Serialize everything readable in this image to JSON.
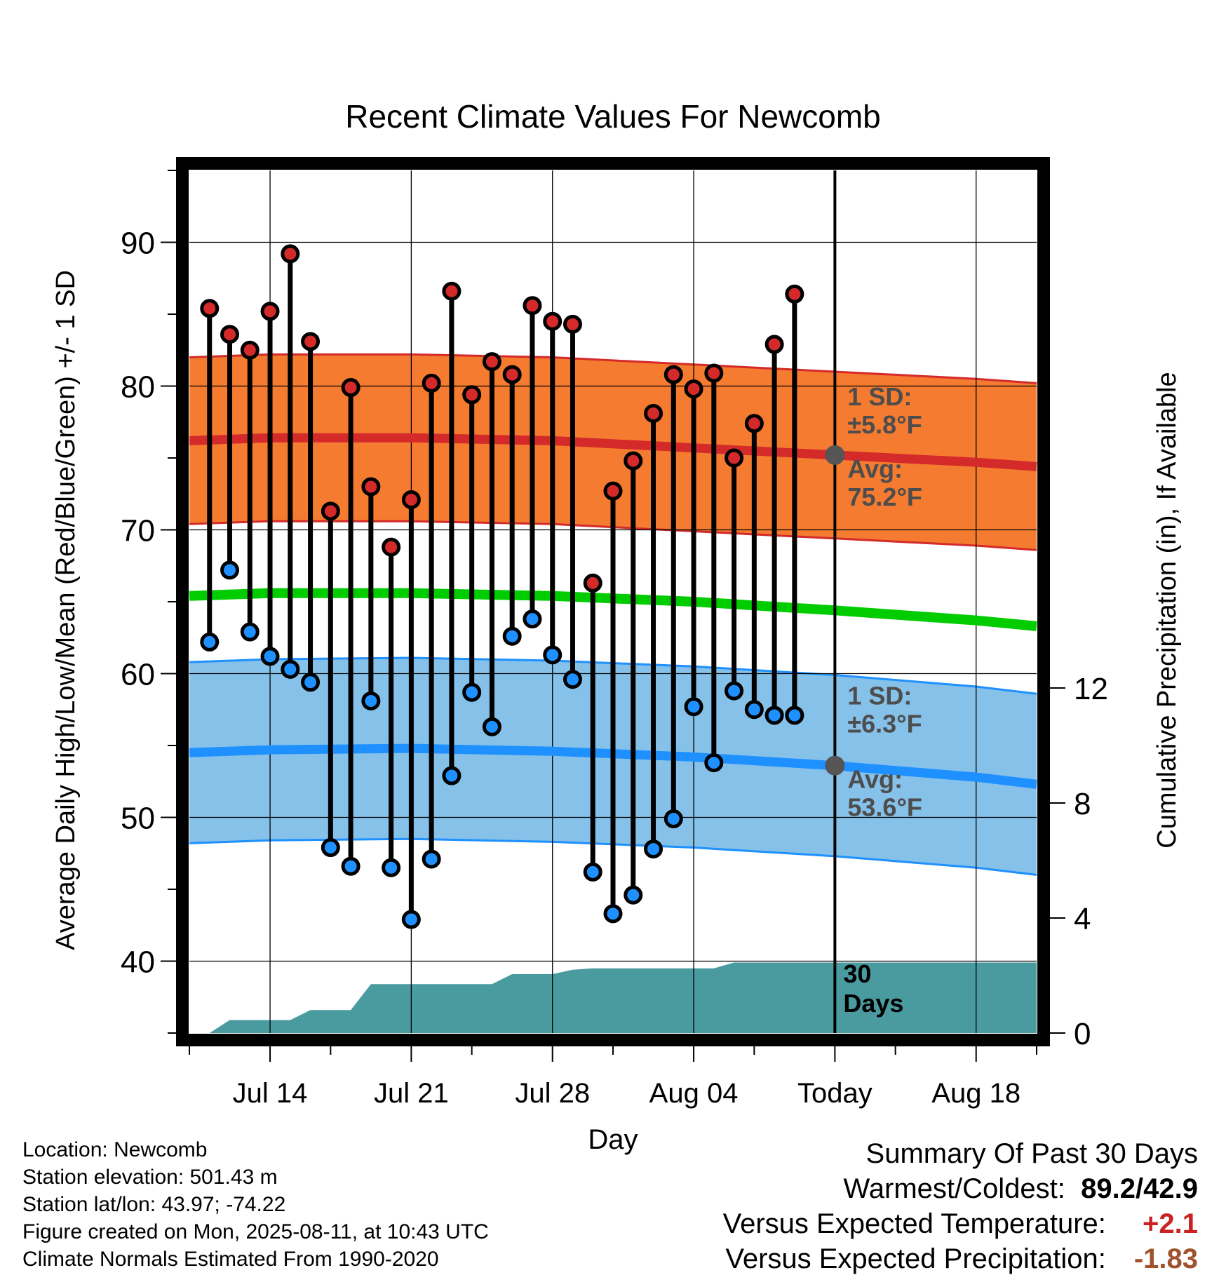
{
  "chart_data": {
    "type": "line",
    "title": "Recent Climate Values For Newcomb",
    "xlabel": "Day",
    "ylabel": "Average Daily High/Low/Mean (Red/Blue/Green) +/- 1 SD",
    "y2label": "Cumulative Precipitation (in), If Available",
    "x_tick_labels": [
      "Jul 14",
      "Jul 21",
      "Jul 28",
      "Aug 04",
      "Today",
      "Aug 18"
    ],
    "x_tick_dates": [
      "2025-07-14",
      "2025-07-21",
      "2025-07-28",
      "2025-08-04",
      "2025-08-11",
      "2025-08-18"
    ],
    "ylim": [
      35,
      95
    ],
    "y_ticks": [
      40,
      50,
      60,
      70,
      80,
      90
    ],
    "y2lim": [
      0,
      30
    ],
    "y2_ticks": [
      0,
      4,
      8,
      12
    ],
    "xlim": [
      "2025-07-10",
      "2025-08-21"
    ],
    "grid": true,
    "today_marker": "Today",
    "days_label": "30 Days",
    "series": [
      {
        "name": "Daily High",
        "color": "#d42a2a",
        "dates": [
          "2025-07-11",
          "2025-07-12",
          "2025-07-13",
          "2025-07-14",
          "2025-07-15",
          "2025-07-16",
          "2025-07-17",
          "2025-07-18",
          "2025-07-19",
          "2025-07-20",
          "2025-07-21",
          "2025-07-22",
          "2025-07-23",
          "2025-07-24",
          "2025-07-25",
          "2025-07-26",
          "2025-07-27",
          "2025-07-28",
          "2025-07-29",
          "2025-07-30",
          "2025-07-31",
          "2025-08-01",
          "2025-08-02",
          "2025-08-03",
          "2025-08-04",
          "2025-08-05",
          "2025-08-06",
          "2025-08-07",
          "2025-08-08",
          "2025-08-09",
          "2025-08-10"
        ],
        "values": [
          85.4,
          83.6,
          82.5,
          85.2,
          89.2,
          83.1,
          71.3,
          79.9,
          73.0,
          68.8,
          72.1,
          80.2,
          86.6,
          79.4,
          81.7,
          80.8,
          85.6,
          84.5,
          84.3,
          66.3,
          72.7,
          74.8,
          78.1,
          80.8,
          79.8,
          80.9,
          75.0,
          77.4,
          82.9,
          86.4,
          null
        ]
      },
      {
        "name": "Daily Low",
        "color": "#1e90ff",
        "dates": [
          "2025-07-11",
          "2025-07-12",
          "2025-07-13",
          "2025-07-14",
          "2025-07-15",
          "2025-07-16",
          "2025-07-17",
          "2025-07-18",
          "2025-07-19",
          "2025-07-20",
          "2025-07-21",
          "2025-07-22",
          "2025-07-23",
          "2025-07-24",
          "2025-07-25",
          "2025-07-26",
          "2025-07-27",
          "2025-07-28",
          "2025-07-29",
          "2025-07-30",
          "2025-07-31",
          "2025-08-01",
          "2025-08-02",
          "2025-08-03",
          "2025-08-04",
          "2025-08-05",
          "2025-08-06",
          "2025-08-07",
          "2025-08-08",
          "2025-08-09",
          "2025-08-10"
        ],
        "values": [
          62.2,
          67.2,
          62.9,
          61.2,
          60.3,
          59.4,
          47.9,
          46.6,
          58.1,
          46.5,
          42.9,
          47.1,
          52.9,
          58.7,
          56.3,
          62.6,
          63.8,
          61.3,
          59.6,
          46.2,
          43.3,
          44.6,
          47.8,
          49.9,
          57.7,
          53.8,
          58.8,
          57.5,
          57.1,
          57.1,
          null
        ]
      },
      {
        "name": "Normal High",
        "color": "#d42a2a",
        "band_color": "#f47b2f",
        "dates": [
          "2025-07-10",
          "2025-07-14",
          "2025-07-21",
          "2025-07-28",
          "2025-08-04",
          "2025-08-11",
          "2025-08-18",
          "2025-08-21"
        ],
        "values": [
          76.2,
          76.4,
          76.4,
          76.2,
          75.7,
          75.2,
          74.7,
          74.4
        ],
        "sd": 5.8,
        "sd_label": "1 SD: ±5.8°F",
        "avg_label": "Avg: 75.2°F"
      },
      {
        "name": "Normal Low",
        "color": "#1e90ff",
        "band_color": "#85c1e9",
        "dates": [
          "2025-07-10",
          "2025-07-14",
          "2025-07-21",
          "2025-07-28",
          "2025-08-04",
          "2025-08-11",
          "2025-08-18",
          "2025-08-21"
        ],
        "values": [
          54.5,
          54.7,
          54.8,
          54.6,
          54.2,
          53.6,
          52.8,
          52.3
        ],
        "sd": 6.3,
        "sd_label": "1 SD: ±6.3°F",
        "avg_label": "Avg: 53.6°F"
      },
      {
        "name": "Normal Mean",
        "color": "#00cc00",
        "dates": [
          "2025-07-10",
          "2025-07-14",
          "2025-07-21",
          "2025-07-28",
          "2025-08-04",
          "2025-08-11",
          "2025-08-18",
          "2025-08-21"
        ],
        "values": [
          65.4,
          65.6,
          65.6,
          65.4,
          65.0,
          64.4,
          63.7,
          63.3
        ]
      },
      {
        "name": "Cumulative Precipitation",
        "color": "#4a9ba0",
        "axis": "y2",
        "dates": [
          "2025-07-11",
          "2025-07-12",
          "2025-07-13",
          "2025-07-14",
          "2025-07-15",
          "2025-07-16",
          "2025-07-17",
          "2025-07-18",
          "2025-07-19",
          "2025-07-20",
          "2025-07-21",
          "2025-07-22",
          "2025-07-23",
          "2025-07-24",
          "2025-07-25",
          "2025-07-26",
          "2025-07-27",
          "2025-07-28",
          "2025-07-29",
          "2025-07-30",
          "2025-07-31",
          "2025-08-01",
          "2025-08-02",
          "2025-08-03",
          "2025-08-04",
          "2025-08-05",
          "2025-08-06",
          "2025-08-07",
          "2025-08-08",
          "2025-08-09",
          "2025-08-10",
          "2025-08-21"
        ],
        "values": [
          0.0,
          0.45,
          0.45,
          0.45,
          0.45,
          0.8,
          0.8,
          0.8,
          1.7,
          1.7,
          1.7,
          1.7,
          1.7,
          1.7,
          1.7,
          2.05,
          2.05,
          2.05,
          2.2,
          2.25,
          2.25,
          2.25,
          2.25,
          2.25,
          2.25,
          2.25,
          2.45,
          2.45,
          2.45,
          2.45,
          2.45,
          2.45
        ]
      }
    ]
  },
  "footer": {
    "location": "Location: Newcomb",
    "elevation": "Station elevation: 501.43 m",
    "latlon": "Station lat/lon: 43.97; -74.22",
    "created": "Figure created on Mon, 2025-08-11, at 10:43 UTC",
    "normals": "Climate Normals Estimated From 1990-2020"
  },
  "summary": {
    "title": "Summary Of Past 30 Days",
    "warm_cold_label": "Warmest/Coldest:",
    "warm_cold_value": "89.2/42.9",
    "temp_label": "Versus Expected Temperature:",
    "temp_value": "+2.1",
    "precip_label": "Versus Expected Precipitation:",
    "precip_value": "-1.83"
  }
}
